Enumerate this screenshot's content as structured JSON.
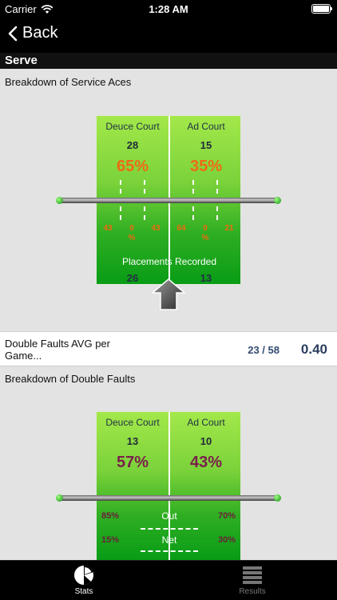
{
  "status_bar": {
    "carrier": "Carrier",
    "time": "1:28 AM"
  },
  "nav": {
    "back_label": "Back"
  },
  "section": {
    "title": "Serve"
  },
  "aces": {
    "title": "Breakdown of Service Aces",
    "deuce": {
      "label": "Deuce Court",
      "count": "28",
      "pct": "65%",
      "small_left": "43",
      "small_mid_a": "0",
      "small_mid_b": "%",
      "small_right": "43"
    },
    "ad": {
      "label": "Ad Court",
      "count": "15",
      "pct": "35%",
      "small_left": "64",
      "small_mid_a": "0",
      "small_mid_b": "%",
      "small_right": "21"
    },
    "placements_label": "Placements Recorded",
    "deuce_placements": "26",
    "ad_placements": "13"
  },
  "double_faults_avg": {
    "label": "Double Faults AVG per Game...",
    "ratio": "23 / 58",
    "value": "0.40"
  },
  "double_faults": {
    "title": "Breakdown of Double Faults",
    "deuce": {
      "label": "Deuce Court",
      "count": "13",
      "pct": "57%",
      "out_pct": "85%",
      "net_pct": "15%"
    },
    "ad": {
      "label": "Ad Court",
      "count": "10",
      "pct": "43%",
      "out_pct": "70%",
      "net_pct": "30%"
    },
    "out_label": "Out",
    "net_label": "Net"
  },
  "tabs": [
    {
      "label": "Stats",
      "icon": "pie-chart-icon",
      "active": true
    },
    {
      "label": "Results",
      "icon": "list-icon",
      "active": false
    }
  ],
  "colors": {
    "accent_orange": "#ee6a12",
    "accent_purple": "#7a1f4a",
    "court_green": "#7ad23a"
  }
}
